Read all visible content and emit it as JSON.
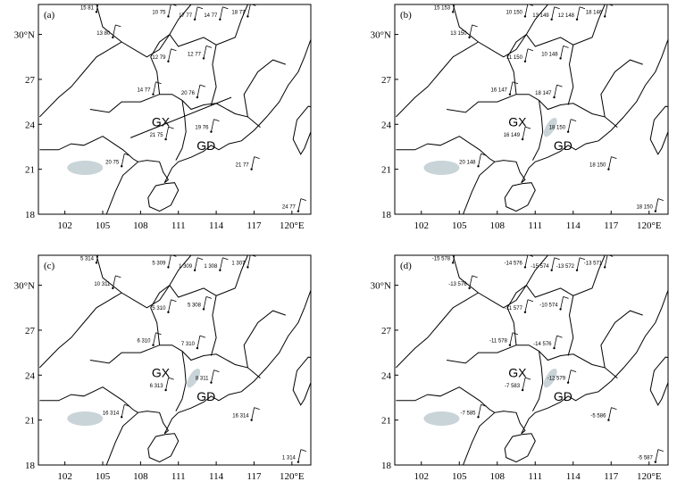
{
  "axes": {
    "lonlim": [
      99.9,
      121.5
    ],
    "latlim": [
      18,
      32
    ],
    "lonticks": [
      102,
      105,
      108,
      111,
      114,
      117,
      {
        "value": 120,
        "label": "120°E"
      }
    ],
    "latticks": [
      18,
      21,
      24,
      27,
      {
        "value": 30,
        "label": "30°N"
      }
    ]
  },
  "panels": [
    {
      "label": "(a)",
      "regions": [
        "GX",
        "GD"
      ],
      "stations": [
        "15 81",
        "10 75",
        "17 77",
        "14 77",
        "18 77",
        "13 80",
        "12 79",
        "12 77",
        "14 77",
        "20 76",
        "21 75",
        "19 76",
        "20 75",
        "21 77",
        "24 77"
      ]
    },
    {
      "label": "(b)",
      "regions": [
        "GX",
        "GD"
      ],
      "stations": [
        "15 153",
        "10 150",
        "13 149",
        "12 148",
        "18 146",
        "13 150",
        "11 150",
        "10 148",
        "16 147",
        "18 147",
        "16 149",
        "18 150",
        "20 148",
        "18 150",
        "18 150"
      ]
    },
    {
      "label": "(c)",
      "regions": [
        "GX",
        "GD"
      ],
      "stations": [
        "5 314",
        "5 309",
        "1 309",
        "1 308",
        "1 307",
        "10 311",
        "5 310",
        "5 308",
        "6 310",
        "7 310",
        "6 313",
        "8 311",
        "16 314",
        "16 314",
        "1 314"
      ]
    },
    {
      "label": "(d)",
      "regions": [
        "GX",
        "GD"
      ],
      "stations": [
        "-15 578",
        "-14 576",
        "-15 574",
        "-13 572",
        "-13 571",
        "-13 576",
        "-11 577",
        "-10 574",
        "-11 578",
        "-14 576",
        "-7 583",
        "-12 579",
        "-7 585",
        "-5 586",
        "-5 587"
      ]
    }
  ]
}
